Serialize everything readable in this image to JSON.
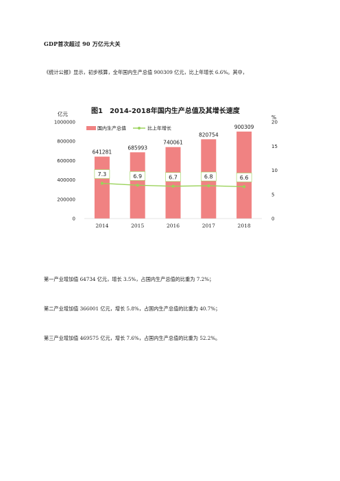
{
  "heading": "GDP首次超过 90 万亿元大关",
  "paragraphs": {
    "intro": "《统计公报》显示，初步核算，全年国内生产总值 900309 亿元，比上年增长 6.6%。其中，",
    "primary": "第一产业增加值 64734 亿元，增长 3.5%，占国内生产总值的比重为 7.2%；",
    "secondary": "第二产业增加值 366001 亿元，增长 5.8%，占国内生产总值的比重为 40.7%；",
    "tertiary": "第三产业增加值 469575 亿元，增长 7.6%，占国内生产总值的比重为 52.2%。"
  },
  "colors": {
    "bar": "#f08282",
    "line": "#9ad25a",
    "label_box_fill": "#ffffff",
    "axis_text": "#222222"
  },
  "chart_data": {
    "type": "bar",
    "title": "图1　2014-2018年国内生产总值及其增长速度",
    "categories": [
      "2014",
      "2015",
      "2016",
      "2017",
      "2018"
    ],
    "series": [
      {
        "name": "国内生产总值",
        "type": "bar",
        "axis": "left",
        "values": [
          641281,
          685993,
          740061,
          820754,
          900309
        ],
        "labels": [
          "641281",
          "685993",
          "740061",
          "820754",
          "900309"
        ]
      },
      {
        "name": "比上年增长",
        "type": "line",
        "axis": "right",
        "values": [
          7.3,
          6.9,
          6.7,
          6.8,
          6.6
        ],
        "labels": [
          "7.3",
          "6.9",
          "6.7",
          "6.8",
          "6.6"
        ]
      }
    ],
    "y_left": {
      "unit": "亿元",
      "ylim": [
        0,
        1000000
      ],
      "ticks": [
        "0",
        "200000",
        "400000",
        "600000",
        "800000",
        "1000000"
      ]
    },
    "y_right": {
      "unit": "%",
      "ylim": [
        0,
        20
      ],
      "ticks": [
        "0",
        "5",
        "10",
        "15",
        "20"
      ]
    },
    "grid": false,
    "legend_position": "top-left"
  }
}
